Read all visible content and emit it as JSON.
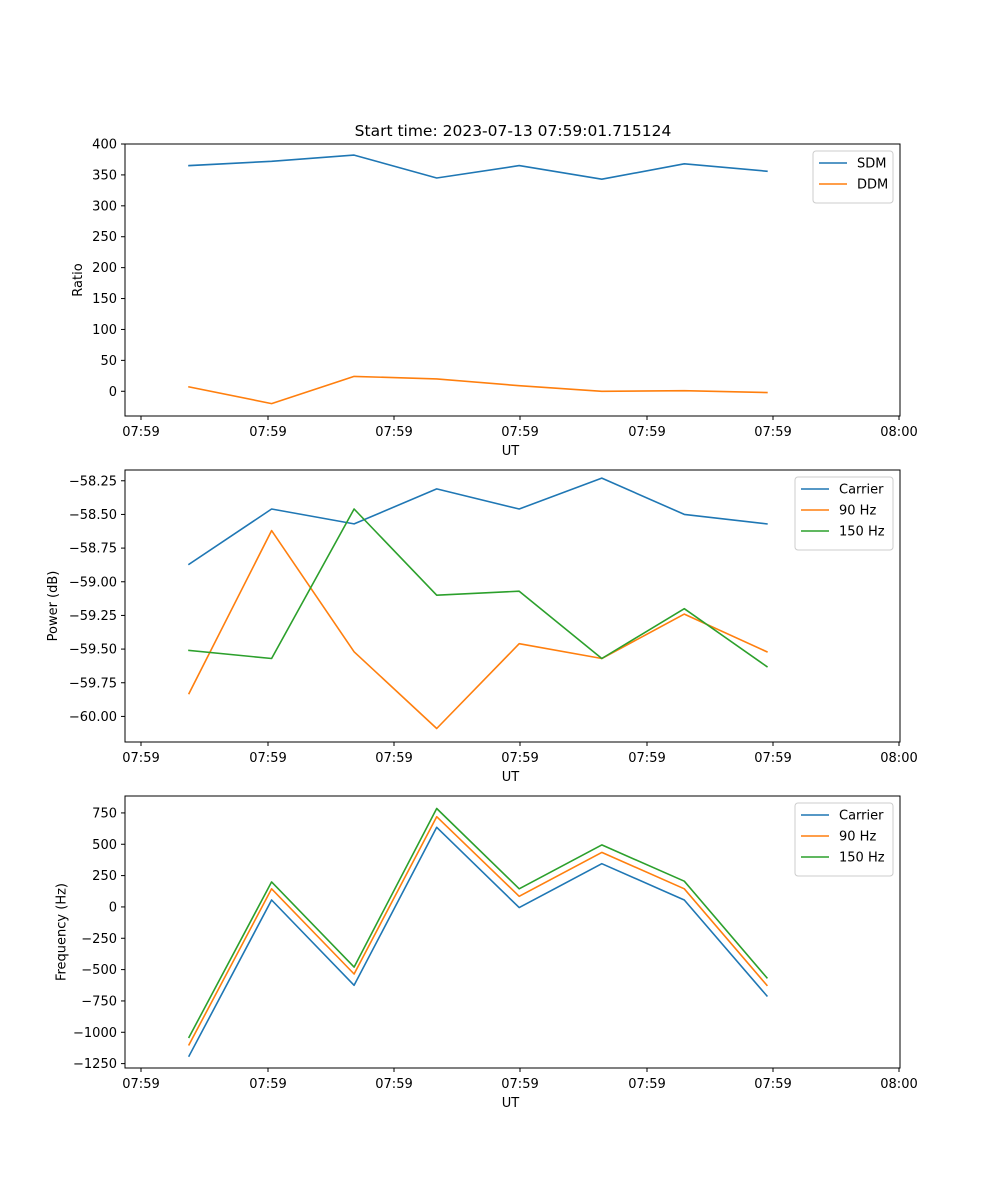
{
  "title": "Start time: 2023-07-13 07:59:01.715124",
  "chart_data": [
    {
      "type": "line",
      "title": "Start time: 2023-07-13 07:59:01.715124",
      "xlabel": "UT",
      "ylabel": "Ratio",
      "x_tick_labels": [
        "07:59",
        "07:59",
        "07:59",
        "07:59",
        "07:59",
        "07:59",
        "08:00"
      ],
      "xlim": [
        0,
        46
      ],
      "x": [
        3.8,
        8.7,
        13.6,
        18.5,
        23.4,
        28.3,
        33.2,
        38.1
      ],
      "ylim": [
        -40,
        400
      ],
      "y_ticks": [
        0,
        50,
        100,
        150,
        200,
        250,
        300,
        350,
        400
      ],
      "legend": "top-right",
      "series": [
        {
          "name": "SDM",
          "color": "#1f77b4",
          "values": [
            365,
            372,
            382,
            345,
            365,
            343,
            368,
            356
          ]
        },
        {
          "name": "DDM",
          "color": "#ff7f0e",
          "values": [
            7,
            -20,
            24,
            20,
            9,
            0,
            1,
            -2
          ]
        }
      ]
    },
    {
      "type": "line",
      "title": "",
      "xlabel": "UT",
      "ylabel": "Power (dB)",
      "x_tick_labels": [
        "07:59",
        "07:59",
        "07:59",
        "07:59",
        "07:59",
        "07:59",
        "08:00"
      ],
      "xlim": [
        0,
        46
      ],
      "x": [
        3.8,
        8.7,
        13.6,
        18.5,
        23.4,
        28.3,
        33.2,
        38.1
      ],
      "ylim": [
        -60.19,
        -58.17
      ],
      "y_ticks": [
        -60.0,
        -59.75,
        -59.5,
        -59.25,
        -59.0,
        -58.75,
        -58.5,
        -58.25
      ],
      "y_tick_labels": [
        "−60.00",
        "−59.75",
        "−59.50",
        "−59.25",
        "−59.00",
        "−58.75",
        "−58.50",
        "−58.25"
      ],
      "legend": "top-right",
      "series": [
        {
          "name": "Carrier",
          "color": "#1f77b4",
          "values": [
            -58.87,
            -58.46,
            -58.57,
            -58.31,
            -58.46,
            -58.23,
            -58.5,
            -58.57
          ]
        },
        {
          "name": "90 Hz",
          "color": "#ff7f0e",
          "values": [
            -59.83,
            -58.62,
            -59.52,
            -60.09,
            -59.46,
            -59.57,
            -59.24,
            -59.52
          ]
        },
        {
          "name": "150 Hz",
          "color": "#2ca02c",
          "values": [
            -59.51,
            -59.57,
            -58.46,
            -59.1,
            -59.07,
            -59.57,
            -59.2,
            -59.63
          ]
        }
      ]
    },
    {
      "type": "line",
      "title": "",
      "xlabel": "UT",
      "ylabel": "Frequency (Hz)",
      "x_tick_labels": [
        "07:59",
        "07:59",
        "07:59",
        "07:59",
        "07:59",
        "07:59",
        "08:00"
      ],
      "xlim": [
        0,
        46
      ],
      "x": [
        3.8,
        8.7,
        13.6,
        18.5,
        23.4,
        28.3,
        33.2,
        38.1
      ],
      "ylim": [
        -1285,
        885
      ],
      "y_ticks": [
        -1250,
        -1000,
        -750,
        -500,
        -250,
        0,
        250,
        500,
        750
      ],
      "y_tick_labels": [
        "−1250",
        "−1000",
        "−750",
        "−500",
        "−250",
        "0",
        "250",
        "500",
        "750"
      ],
      "legend": "top-right",
      "series": [
        {
          "name": "Carrier",
          "color": "#1f77b4",
          "values": [
            -1190,
            55,
            -625,
            635,
            -5,
            345,
            55,
            -710
          ]
        },
        {
          "name": "90 Hz",
          "color": "#ff7f0e",
          "values": [
            -1100,
            145,
            -535,
            720,
            85,
            435,
            145,
            -625
          ]
        },
        {
          "name": "150 Hz",
          "color": "#2ca02c",
          "values": [
            -1040,
            200,
            -480,
            785,
            145,
            495,
            205,
            -565
          ]
        }
      ]
    }
  ]
}
